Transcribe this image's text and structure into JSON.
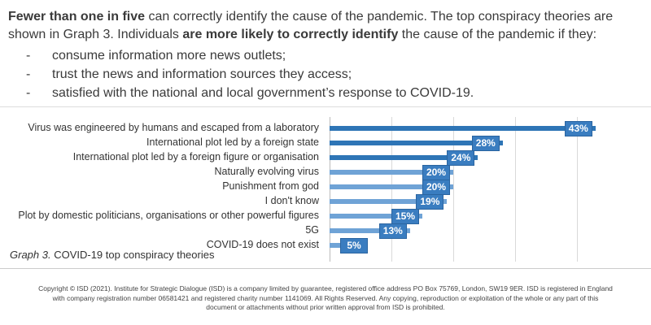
{
  "intro": {
    "bold1": "Fewer than one in five",
    "text1": " can correctly identify the cause of the pandemic. The top conspiracy theories are",
    "text2a": "shown in Graph 3. Individuals ",
    "bold2": "are more likely to correctly identify",
    "text2b": " the cause of the pandemic if they:"
  },
  "bullets": [
    {
      "dash": "-",
      "text": "consume information more news outlets;"
    },
    {
      "dash": "-",
      "text": "trust the news and information sources they access;"
    },
    {
      "dash": "-",
      "text": "satisfied with the national and local government’s response to COVID-19."
    }
  ],
  "chart_data": {
    "type": "bar",
    "orientation": "horizontal",
    "categories": [
      "Virus was engineered by humans and escaped from a laboratory",
      "International plot led by a foreign state",
      "International plot led by a foreign figure or organisation",
      "Naturally evolving virus",
      "Punishment from god",
      "I don't know",
      "Plot by domestic politicians, organisations or other powerful figures",
      "5G",
      "COVID-19 does not exist"
    ],
    "values": [
      43,
      28,
      24,
      20,
      20,
      19,
      15,
      13,
      5
    ],
    "data_labels": [
      "43%",
      "28%",
      "24%",
      "20%",
      "20%",
      "19%",
      "15%",
      "13%",
      "5%"
    ],
    "xlim": [
      0,
      50
    ],
    "grid": true,
    "colors": {
      "dark": "#2e75b6",
      "light": "#6fa3d6"
    }
  },
  "caption": {
    "italic": "Graph 3.",
    "text": " COVID-19 top conspiracy theories"
  },
  "footer": [
    "Copyright © ISD (2021).  Institute for Strategic Dialogue (ISD) is a company limited by guarantee, registered office address PO Box 75769, London, SW19 9ER. ISD is registered in England",
    "with company registration number 06581421 and registered charity number 1141069. All Rights Reserved. Any copying, reproduction or exploitation of the whole or any part of this",
    "document or attachments without prior written approval from ISD is prohibited."
  ]
}
